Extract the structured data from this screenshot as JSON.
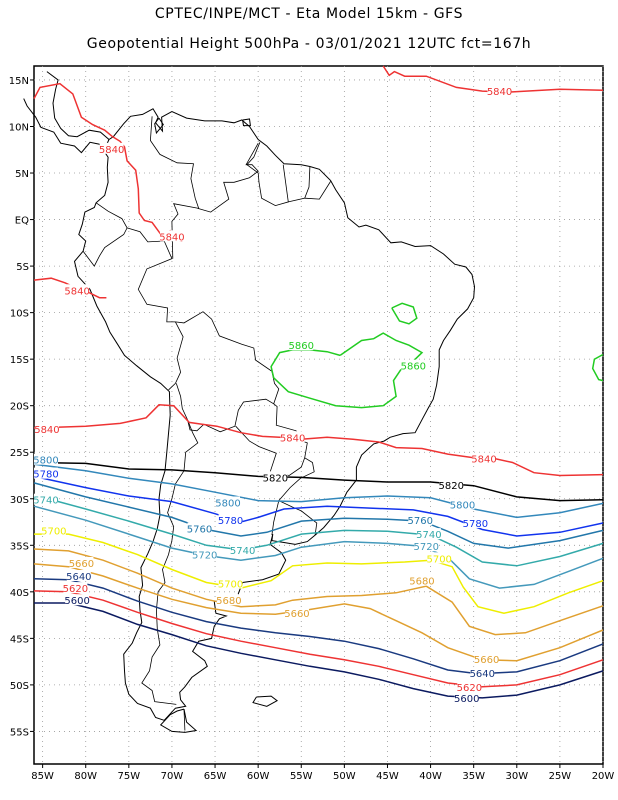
{
  "header": {
    "title_line1": "CPTEC/INPE/MCT -  Eta Model 15km - GFS",
    "title_line2": "Geopotential Height 500hPa - 03/01/2021 12UTC fct=167h"
  },
  "map": {
    "lon_range": [
      -86,
      -20
    ],
    "lat_range": [
      -58.5,
      16.5
    ],
    "grid": "dotted",
    "lat_labels": [
      "15N",
      "10N",
      "5N",
      "EQ",
      "5S",
      "10S",
      "15S",
      "20S",
      "25S",
      "30S",
      "35S",
      "40S",
      "45S",
      "50S",
      "55S"
    ],
    "lat_values": [
      15,
      10,
      5,
      0,
      -5,
      -10,
      -15,
      -20,
      -25,
      -30,
      -35,
      -40,
      -45,
      -50,
      -55
    ],
    "lon_labels": [
      "85W",
      "80W",
      "75W",
      "70W",
      "65W",
      "60W",
      "55W",
      "50W",
      "45W",
      "40W",
      "35W",
      "30W",
      "25W",
      "20W"
    ],
    "lon_values": [
      -85,
      -80,
      -75,
      -70,
      -65,
      -60,
      -55,
      -50,
      -45,
      -40,
      -35,
      -30,
      -25,
      -20
    ]
  },
  "contours": {
    "colors": {
      "5860": "#22cc22",
      "5840": "#ee3333",
      "5820": "#000000",
      "5800": "#3388bb",
      "5780": "#1133ee",
      "5760": "#2277aa",
      "5740": "#33aaaa",
      "5720": "#4499bb",
      "5700": "#eeee00",
      "5680": "#e0a030",
      "5660": "#e0a030",
      "5640": "#1a3a80",
      "5620": "#ee3333",
      "5600": "#0b1a60"
    },
    "labels": [
      {
        "text": "5840",
        "level": "5840",
        "lon": -32,
        "lat": 13.8
      },
      {
        "text": "5840",
        "level": "5840",
        "lon": -77,
        "lat": 7.6
      },
      {
        "text": "5840",
        "level": "5840",
        "lon": -70,
        "lat": -1.8
      },
      {
        "text": "5840",
        "level": "5840",
        "lon": -81,
        "lat": -7.6
      },
      {
        "text": "5840",
        "level": "5840",
        "lon": -84.5,
        "lat": -22.5
      },
      {
        "text": "5840",
        "level": "5840",
        "lon": -56,
        "lat": -23.4
      },
      {
        "text": "5840",
        "level": "5840",
        "lon": -33.8,
        "lat": -25.7
      },
      {
        "text": "5860",
        "level": "5860",
        "lon": -55,
        "lat": -13.5
      },
      {
        "text": "5860",
        "level": "5860",
        "lon": -42,
        "lat": -15.7
      },
      {
        "text": "5820",
        "level": "5820",
        "lon": -58,
        "lat": -27.7
      },
      {
        "text": "5820",
        "level": "5820",
        "lon": -37.6,
        "lat": -28.5
      },
      {
        "text": "5800",
        "level": "5800",
        "lon": -86.5,
        "lat": -25.8
      },
      {
        "text": "5800",
        "level": "5800",
        "lon": -63.5,
        "lat": -30.4
      },
      {
        "text": "5800",
        "level": "5800",
        "lon": -36.3,
        "lat": -30.6
      },
      {
        "text": "5780",
        "level": "5780",
        "lon": -85.8,
        "lat": -27.3
      },
      {
        "text": "5780",
        "level": "5780",
        "lon": -63.2,
        "lat": -32.3
      },
      {
        "text": "5780",
        "level": "5780",
        "lon": -34.8,
        "lat": -32.6
      },
      {
        "text": "5760",
        "level": "5760",
        "lon": -66.8,
        "lat": -33.2
      },
      {
        "text": "5760",
        "level": "5760",
        "lon": -41.2,
        "lat": -32.3
      },
      {
        "text": "5740",
        "level": "5740",
        "lon": -86.5,
        "lat": -30.1
      },
      {
        "text": "5740",
        "level": "5740",
        "lon": -61.8,
        "lat": -35.5
      },
      {
        "text": "5740",
        "level": "5740",
        "lon": -40.2,
        "lat": -33.8
      },
      {
        "text": "5720",
        "level": "5720",
        "lon": -66.2,
        "lat": -36.0
      },
      {
        "text": "5720",
        "level": "5720",
        "lon": -40.5,
        "lat": -35.1
      },
      {
        "text": "5700",
        "level": "5700",
        "lon": -83.7,
        "lat": -33.4
      },
      {
        "text": "5700",
        "level": "5700",
        "lon": -63.2,
        "lat": -39.1
      },
      {
        "text": "5700",
        "level": "5700",
        "lon": -39.0,
        "lat": -36.4
      },
      {
        "text": "5680",
        "level": "5680",
        "lon": -63.4,
        "lat": -40.9
      },
      {
        "text": "5680",
        "level": "5680",
        "lon": -41.0,
        "lat": -38.8
      },
      {
        "text": "5660",
        "level": "5660",
        "lon": -80.5,
        "lat": -36.9
      },
      {
        "text": "5660",
        "level": "5660",
        "lon": -55.5,
        "lat": -42.3
      },
      {
        "text": "5660",
        "level": "5660",
        "lon": -33.5,
        "lat": -47.2
      },
      {
        "text": "5640",
        "level": "5640",
        "lon": -80.8,
        "lat": -38.3
      },
      {
        "text": "5640",
        "level": "5640",
        "lon": -34.0,
        "lat": -48.7
      },
      {
        "text": "5620",
        "level": "5620",
        "lon": -81.2,
        "lat": -39.6
      },
      {
        "text": "5620",
        "level": "5620",
        "lon": -35.5,
        "lat": -50.2
      },
      {
        "text": "5600",
        "level": "5600",
        "lon": -81.0,
        "lat": -40.9
      },
      {
        "text": "5600",
        "level": "5600",
        "lon": -35.8,
        "lat": -51.4
      }
    ]
  }
}
